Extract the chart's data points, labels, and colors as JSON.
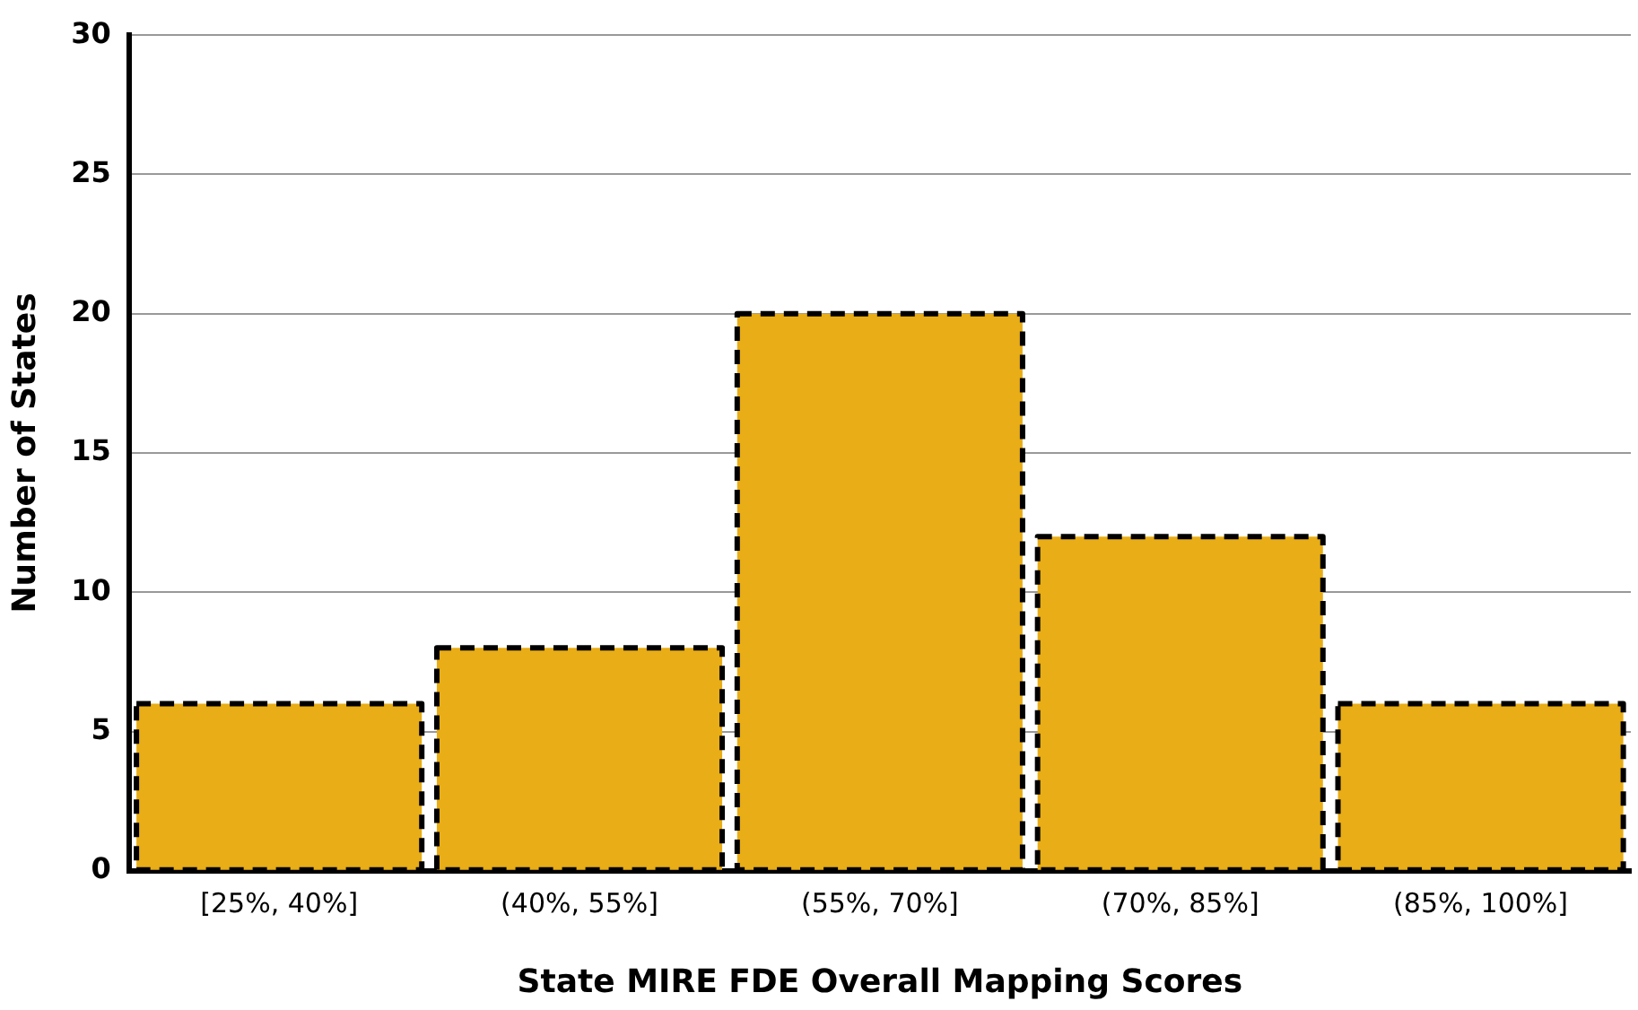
{
  "chart_data": {
    "type": "bar",
    "xlabel": "State MIRE FDE Overall Mapping Scores",
    "ylabel": "Number of States",
    "categories": [
      "[25%, 40%]",
      "(40%, 55%]",
      "(55%, 70%]",
      "(70%, 85%]",
      "(85%, 100%]"
    ],
    "values": [
      6,
      8,
      20,
      12,
      6
    ],
    "color": "#e8ad17",
    "line_style": "dashed",
    "ylim": [
      0,
      30
    ],
    "yticks": [
      0,
      5,
      10,
      15,
      20,
      25,
      30
    ],
    "grid": "y",
    "legend": false
  }
}
